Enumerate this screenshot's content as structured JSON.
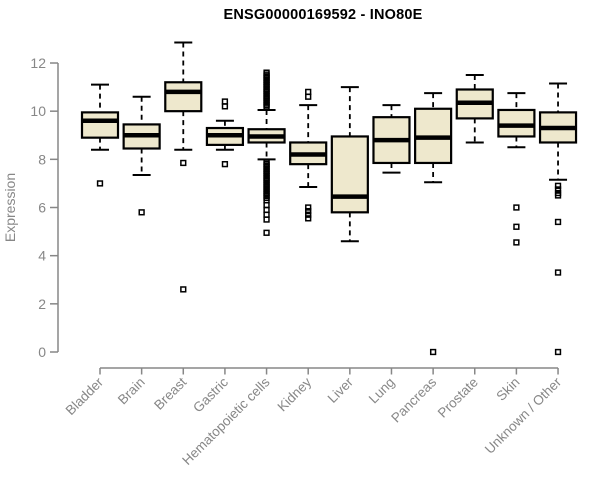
{
  "title": "ENSG00000169592 - INO80E",
  "chart_data": {
    "type": "boxplot",
    "title": "ENSG00000169592 - INO80E",
    "xlabel": "",
    "ylabel": "Expression",
    "ylim": [
      0,
      13
    ],
    "yticks": [
      0,
      2,
      4,
      6,
      8,
      10,
      12
    ],
    "grid": false,
    "legend": "none",
    "axis_color": "#878787",
    "box_fill": "#EEE8CD",
    "box_stroke": "#000000",
    "categories": [
      "Bladder",
      "Brain",
      "Breast",
      "Gastric",
      "Hematopoietic cells",
      "Kidney",
      "Liver",
      "Lung",
      "Pancreas",
      "Prostate",
      "Skin",
      "Unknown / Other"
    ],
    "series": [
      {
        "category": "Bladder",
        "whisker_low": 8.4,
        "q1": 8.9,
        "median": 9.6,
        "q3": 9.95,
        "whisker_high": 11.1,
        "outliers": [
          7.0
        ]
      },
      {
        "category": "Brain",
        "whisker_low": 7.35,
        "q1": 8.45,
        "median": 9.0,
        "q3": 9.45,
        "whisker_high": 10.6,
        "outliers": [
          5.8
        ]
      },
      {
        "category": "Breast",
        "whisker_low": 8.4,
        "q1": 10.0,
        "median": 10.8,
        "q3": 11.2,
        "whisker_high": 12.85,
        "outliers": [
          7.85,
          2.6
        ]
      },
      {
        "category": "Gastric",
        "whisker_low": 8.4,
        "q1": 8.6,
        "median": 9.0,
        "q3": 9.3,
        "whisker_high": 9.6,
        "outliers": [
          10.4,
          10.2,
          7.8
        ]
      },
      {
        "category": "Hematopoietic cells",
        "whisker_low": 8.0,
        "q1": 8.7,
        "median": 8.95,
        "q3": 9.25,
        "whisker_high": 10.05,
        "outliers": [
          11.6,
          11.52,
          11.45,
          11.38,
          11.3,
          11.22,
          11.15,
          11.08,
          11.0,
          10.92,
          10.85,
          10.78,
          10.7,
          10.62,
          10.55,
          10.48,
          10.4,
          10.32,
          10.25,
          10.18,
          7.9,
          7.82,
          7.75,
          7.68,
          7.6,
          7.52,
          7.45,
          7.38,
          7.3,
          7.22,
          7.15,
          7.08,
          7.0,
          6.92,
          6.85,
          6.78,
          6.7,
          6.62,
          6.55,
          6.48,
          6.4,
          6.3,
          6.1,
          5.9,
          5.7,
          5.5,
          4.95
        ]
      },
      {
        "category": "Kidney",
        "whisker_low": 6.85,
        "q1": 7.8,
        "median": 8.2,
        "q3": 8.7,
        "whisker_high": 10.25,
        "outliers": [
          10.8,
          10.6,
          6.0,
          5.85,
          5.7,
          5.55
        ]
      },
      {
        "category": "Liver",
        "whisker_low": 4.6,
        "q1": 5.8,
        "median": 6.45,
        "q3": 8.95,
        "whisker_high": 11.0,
        "outliers": []
      },
      {
        "category": "Lung",
        "whisker_low": 7.45,
        "q1": 7.85,
        "median": 8.8,
        "q3": 9.75,
        "whisker_high": 10.25,
        "outliers": []
      },
      {
        "category": "Pancreas",
        "whisker_low": 7.05,
        "q1": 7.85,
        "median": 8.9,
        "q3": 10.1,
        "whisker_high": 10.75,
        "outliers": [
          0
        ]
      },
      {
        "category": "Prostate",
        "whisker_low": 8.7,
        "q1": 9.7,
        "median": 10.35,
        "q3": 10.9,
        "whisker_high": 11.5,
        "outliers": []
      },
      {
        "category": "Skin",
        "whisker_low": 8.5,
        "q1": 8.95,
        "median": 9.4,
        "q3": 10.05,
        "whisker_high": 10.75,
        "outliers": [
          6.0,
          5.2,
          4.55
        ]
      },
      {
        "category": "Unknown / Other",
        "whisker_low": 7.15,
        "q1": 8.7,
        "median": 9.3,
        "q3": 9.95,
        "whisker_high": 11.15,
        "outliers": [
          6.9,
          6.75,
          6.6,
          6.5,
          5.4,
          3.3,
          0
        ]
      }
    ]
  }
}
